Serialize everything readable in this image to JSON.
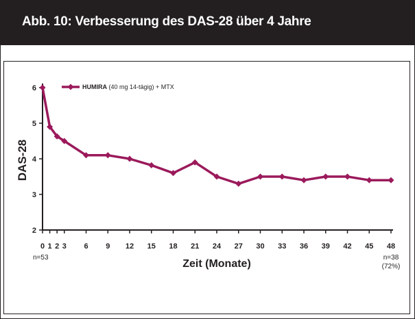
{
  "header": {
    "title": "Abb. 10:  Verbesserung des DAS-28 über 4 Jahre"
  },
  "colors": {
    "header_bg": "#231f20",
    "series": "#9b1a5b",
    "axis": "#231f20"
  },
  "legend": {
    "bold": "HUMIRA",
    "rest": " (40 mg 14-tägig) + MTX"
  },
  "annotations": {
    "start_n": "n=53",
    "end_n": "n=38",
    "end_pct": "(72%)"
  },
  "chart_data": {
    "type": "line",
    "title": "Abb. 10:  Verbesserung des DAS-28 über 4 Jahre",
    "xlabel": "Zeit (Monate)",
    "ylabel": "DAS-28",
    "xlim": [
      0,
      48
    ],
    "ylim": [
      2,
      6
    ],
    "x_ticks": [
      0,
      1,
      2,
      3,
      6,
      9,
      12,
      15,
      18,
      21,
      24,
      27,
      30,
      33,
      36,
      39,
      42,
      45,
      48
    ],
    "y_ticks": [
      2,
      3,
      4,
      5,
      6
    ],
    "grid": false,
    "legend_position": "top-left",
    "series": [
      {
        "name": "HUMIRA (40 mg 14-tägig) + MTX",
        "color": "#9b1a5b",
        "marker": "diamond",
        "x": [
          0,
          1,
          2,
          3,
          6,
          9,
          12,
          15,
          18,
          21,
          24,
          27,
          30,
          33,
          36,
          39,
          42,
          45,
          48
        ],
        "y": [
          6.0,
          4.9,
          4.63,
          4.5,
          4.1,
          4.1,
          4.0,
          3.82,
          3.6,
          3.9,
          3.5,
          3.3,
          3.5,
          3.5,
          3.4,
          3.5,
          3.5,
          3.4,
          3.4
        ]
      }
    ]
  }
}
